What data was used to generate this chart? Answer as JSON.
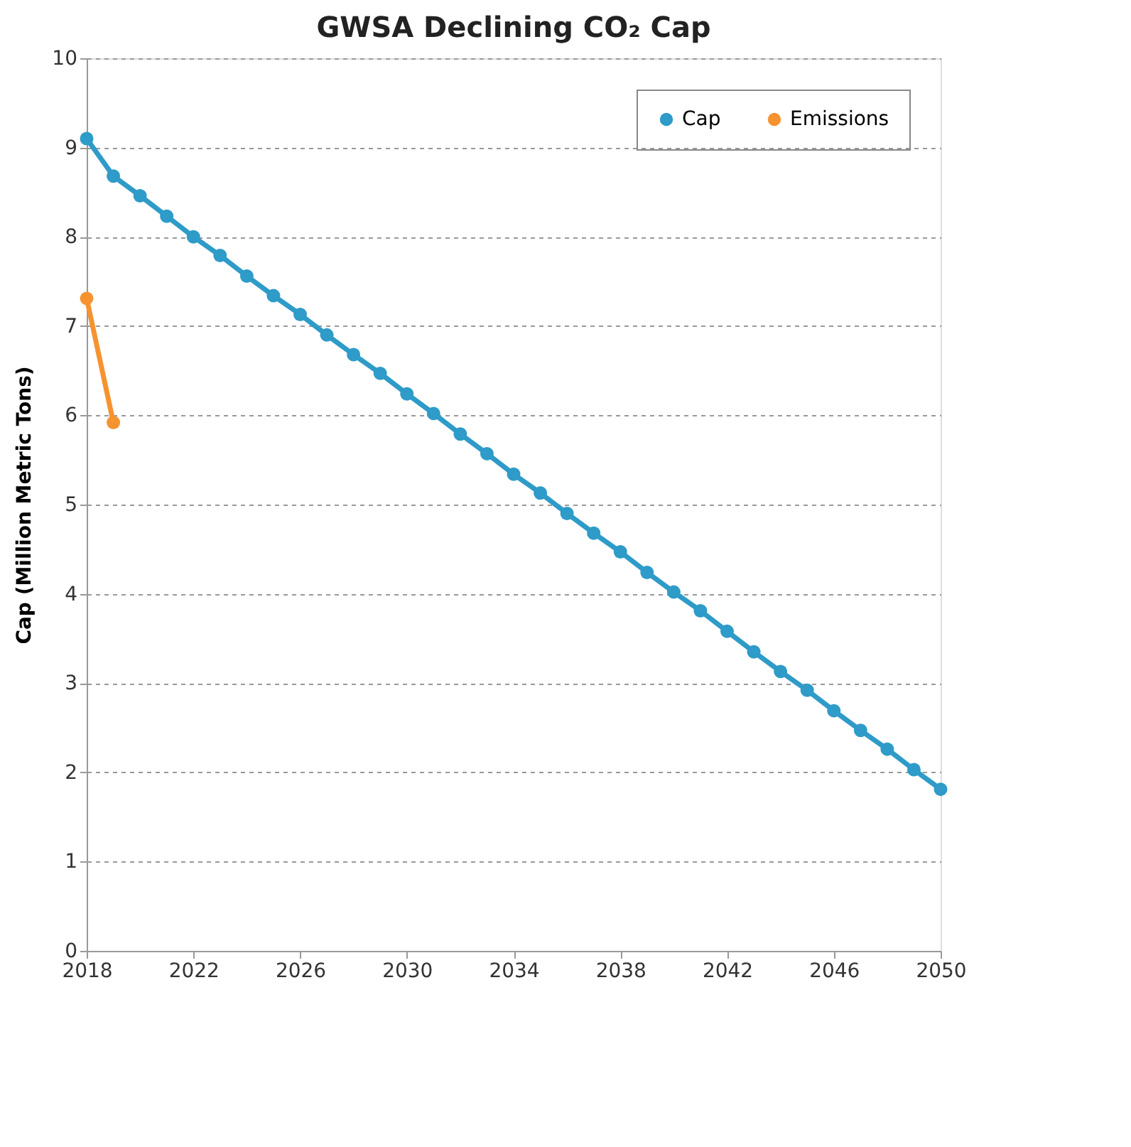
{
  "chart_data": {
    "type": "line",
    "title": "GWSA Declining CO₂ Cap",
    "ylabel": "Cap (Million Metric Tons)",
    "x": [
      2018,
      2019,
      2020,
      2021,
      2022,
      2023,
      2024,
      2025,
      2026,
      2027,
      2028,
      2029,
      2030,
      2031,
      2032,
      2033,
      2034,
      2035,
      2036,
      2037,
      2038,
      2039,
      2040,
      2041,
      2042,
      2043,
      2044,
      2045,
      2046,
      2047,
      2048,
      2049,
      2050
    ],
    "series": [
      {
        "name": "Cap",
        "color": "#2e9bc8",
        "values": [
          9.1,
          8.68,
          8.46,
          8.23,
          8.0,
          7.79,
          7.56,
          7.34,
          7.13,
          6.9,
          6.68,
          6.47,
          6.24,
          6.02,
          5.79,
          5.57,
          5.34,
          5.13,
          4.9,
          4.68,
          4.47,
          4.24,
          4.02,
          3.81,
          3.58,
          3.35,
          3.13,
          2.92,
          2.69,
          2.47,
          2.26,
          2.03,
          1.81
        ]
      },
      {
        "name": "Emissions",
        "color": "#f59331",
        "x": [
          2018,
          2019
        ],
        "values": [
          7.31,
          5.92
        ]
      }
    ],
    "xlim": [
      2018,
      2050
    ],
    "xticks": [
      2018,
      2022,
      2026,
      2030,
      2034,
      2038,
      2042,
      2046,
      2050
    ],
    "ylim": [
      0,
      10
    ],
    "yticks": [
      0,
      1,
      2,
      3,
      4,
      5,
      6,
      7,
      8,
      9,
      10
    ],
    "grid": "y",
    "legend": "top right",
    "marker": "circle",
    "line_style": "solid"
  }
}
